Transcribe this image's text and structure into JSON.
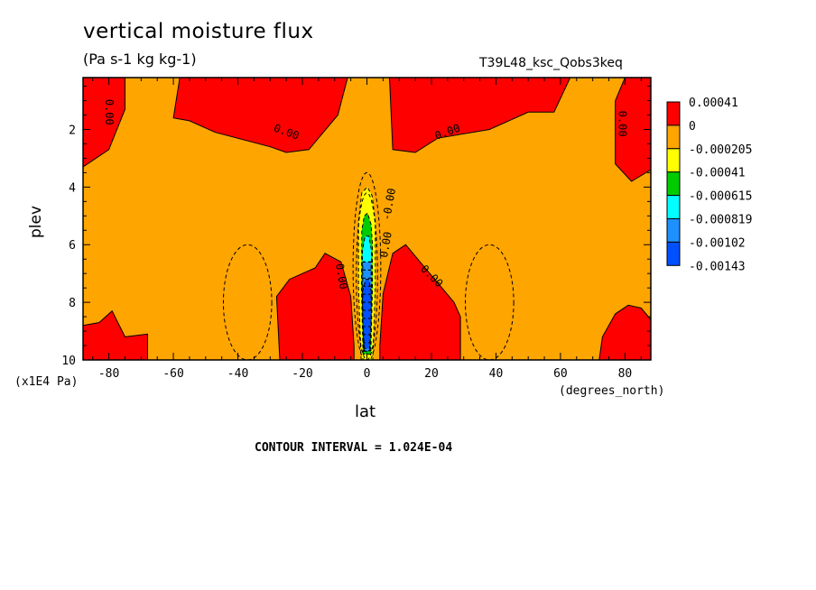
{
  "chart_data": {
    "type": "heatmap",
    "title": "vertical moisture flux",
    "subtitle": "(Pa s-1 kg kg-1)",
    "run_id": "T39L48_ksc_Qobs3keq",
    "xlabel": "lat",
    "ylabel": "plev",
    "x_unit": "(degrees_north)",
    "y_unit": "(x1E4 Pa)",
    "xlim": [
      -88,
      88
    ],
    "ylim": [
      0.2,
      10
    ],
    "y_inverted": true,
    "x_ticks": [
      -80,
      -60,
      -40,
      -20,
      0,
      20,
      40,
      60,
      80
    ],
    "x_tick_labels": [
      "-80",
      "-60",
      "-40",
      "-20",
      "0",
      "20",
      "40",
      "60",
      "80"
    ],
    "y_ticks": [
      2,
      4,
      6,
      8,
      10
    ],
    "y_tick_labels": [
      "2",
      "4",
      "6",
      "8",
      "10"
    ],
    "contour_interval": "CONTOUR INTERVAL = 1.024E-04",
    "contour_labels": [
      "0.00",
      "0.00",
      "0.00",
      "0.00",
      "0.00",
      "0.00",
      "0.00",
      "-0.00"
    ],
    "legend": {
      "position": "right",
      "levels": [
        {
          "label": "0.00041",
          "color": "#ff0000"
        },
        {
          "label": "0",
          "color": "#ffa500"
        },
        {
          "label": "-0.000205",
          "color": "#ffff00"
        },
        {
          "label": "-0.00041",
          "color": "#00cc00"
        },
        {
          "label": "-0.000615",
          "color": "#00ffff"
        },
        {
          "label": "-0.000819",
          "color": "#1e90ff"
        },
        {
          "label": "-0.00102",
          "color": "#0050ff"
        },
        {
          "label": "-0.00143",
          "color": ""
        }
      ]
    },
    "regions": [
      {
        "level": "positive",
        "color": "#ff0000",
        "polygon": [
          [
            -88,
            0.2
          ],
          [
            -88,
            3.3
          ],
          [
            -80,
            2.7
          ],
          [
            -75,
            1.3
          ],
          [
            -75,
            0.2
          ]
        ]
      },
      {
        "level": "positive",
        "color": "#ff0000",
        "polygon": [
          [
            -58,
            0.2
          ],
          [
            -60,
            1.6
          ],
          [
            -55,
            1.7
          ],
          [
            -47,
            2.1
          ],
          [
            -30,
            2.6
          ],
          [
            -25,
            2.8
          ],
          [
            -18,
            2.7
          ],
          [
            -9,
            1.5
          ],
          [
            -6,
            0.2
          ]
        ]
      },
      {
        "level": "positive",
        "color": "#ff0000",
        "polygon": [
          [
            7,
            0.2
          ],
          [
            8,
            2.7
          ],
          [
            15,
            2.8
          ],
          [
            22,
            2.3
          ],
          [
            38,
            2.0
          ],
          [
            50,
            1.4
          ],
          [
            58,
            1.4
          ],
          [
            63,
            0.2
          ]
        ]
      },
      {
        "level": "positive",
        "color": "#ff0000",
        "polygon": [
          [
            80,
            0.2
          ],
          [
            77,
            1.0
          ],
          [
            77,
            3.2
          ],
          [
            82,
            3.8
          ],
          [
            88,
            3.4
          ],
          [
            88,
            0.2
          ]
        ]
      },
      {
        "level": "positive",
        "color": "#ff0000",
        "polygon": [
          [
            -27,
            10
          ],
          [
            -28,
            7.8
          ],
          [
            -24,
            7.2
          ],
          [
            -16,
            6.8
          ],
          [
            -13,
            6.3
          ],
          [
            -8,
            6.6
          ],
          [
            -5,
            7.8
          ],
          [
            -4,
            9.5
          ],
          [
            -4,
            10
          ]
        ]
      },
      {
        "level": "positive",
        "color": "#ff0000",
        "polygon": [
          [
            4,
            10
          ],
          [
            4,
            9.5
          ],
          [
            5,
            7.7
          ],
          [
            8,
            6.3
          ],
          [
            12,
            6.0
          ],
          [
            18,
            6.8
          ],
          [
            24,
            7.6
          ],
          [
            27,
            8.0
          ],
          [
            29,
            8.5
          ],
          [
            29,
            10
          ]
        ]
      },
      {
        "level": "positive",
        "color": "#ff0000",
        "polygon": [
          [
            -88,
            10
          ],
          [
            -88,
            8.8
          ],
          [
            -83,
            8.7
          ],
          [
            -79,
            8.3
          ],
          [
            -75,
            9.2
          ],
          [
            -68,
            9.1
          ],
          [
            -68,
            10
          ]
        ]
      },
      {
        "level": "positive",
        "color": "#ff0000",
        "polygon": [
          [
            72,
            10
          ],
          [
            73,
            9.2
          ],
          [
            77,
            8.4
          ],
          [
            81,
            8.1
          ],
          [
            85,
            8.2
          ],
          [
            88,
            8.6
          ],
          [
            88,
            10
          ]
        ]
      },
      {
        "level": "negative",
        "color": "#ffff00",
        "polygon": [
          [
            -1.8,
            10
          ],
          [
            -2.6,
            7.5
          ],
          [
            -2.6,
            5.2
          ],
          [
            -1.6,
            4.2
          ],
          [
            0.1,
            4.0
          ],
          [
            1.6,
            4.3
          ],
          [
            2.6,
            5.2
          ],
          [
            2.6,
            7.5
          ],
          [
            1.8,
            10
          ]
        ]
      },
      {
        "level": "negative",
        "color": "#00cc00",
        "polygon": [
          [
            -1.2,
            9.8
          ],
          [
            -1.7,
            7.5
          ],
          [
            -1.6,
            5.5
          ],
          [
            -0.8,
            5.0
          ],
          [
            0.2,
            4.9
          ],
          [
            1.3,
            5.3
          ],
          [
            1.7,
            6.0
          ],
          [
            1.7,
            7.5
          ],
          [
            1.2,
            9.8
          ]
        ]
      },
      {
        "level": "negative",
        "color": "#00ffff",
        "polygon": [
          [
            -1.0,
            9.6
          ],
          [
            -1.5,
            7.5
          ],
          [
            -1.4,
            6.2
          ],
          [
            -0.6,
            5.7
          ],
          [
            0.6,
            5.7
          ],
          [
            1.4,
            6.2
          ],
          [
            1.5,
            7.5
          ],
          [
            1.0,
            9.6
          ]
        ]
      },
      {
        "level": "negative",
        "color": "#1e90ff",
        "polygon": [
          [
            -0.9,
            9.7
          ],
          [
            -1.4,
            8.0
          ],
          [
            -1.3,
            6.6
          ],
          [
            1.3,
            6.6
          ],
          [
            1.4,
            8.0
          ],
          [
            0.9,
            9.7
          ]
        ]
      },
      {
        "level": "negative",
        "color": "#0050ff",
        "polygon": [
          [
            -0.8,
            9.6
          ],
          [
            -1.3,
            8.6
          ],
          [
            -1.3,
            7.6
          ],
          [
            -0.4,
            7.2
          ],
          [
            0.6,
            7.2
          ],
          [
            1.3,
            7.6
          ],
          [
            1.3,
            8.6
          ],
          [
            0.8,
            9.6
          ]
        ]
      }
    ]
  }
}
